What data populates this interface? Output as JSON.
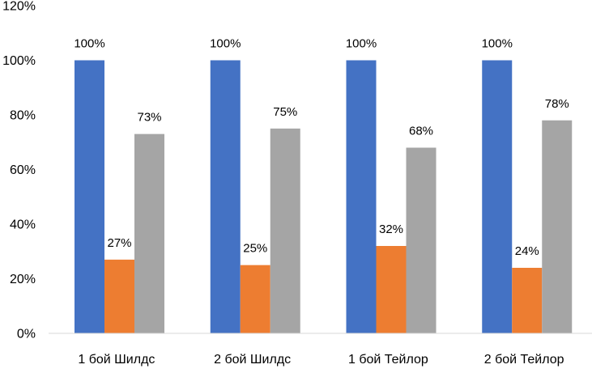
{
  "chart_data": {
    "type": "bar",
    "categories": [
      "1 бой Шилдс",
      "2 бой Шилдс",
      "1 бой Тейлор",
      "2 бой Тейлор"
    ],
    "series": [
      {
        "values": [
          100,
          100,
          100,
          100
        ],
        "labels": [
          "100%",
          "100%",
          "100%",
          "100%"
        ],
        "color": "#4472C4"
      },
      {
        "values": [
          27,
          25,
          32,
          24
        ],
        "labels": [
          "27%",
          "25%",
          "32%",
          "24%"
        ],
        "color": "#ED7D31"
      },
      {
        "values": [
          73,
          75,
          68,
          78
        ],
        "labels": [
          "73%",
          "75%",
          "68%",
          "78%"
        ],
        "color": "#A5A5A5"
      }
    ],
    "ylim": [
      0,
      120
    ],
    "yticks": [
      0,
      20,
      40,
      60,
      80,
      100,
      120
    ],
    "ytick_labels": [
      "0%",
      "20%",
      "40%",
      "60%",
      "80%",
      "100%",
      "120%"
    ],
    "grid": false,
    "legend": "none",
    "axis_color": "#D9D9D9"
  }
}
